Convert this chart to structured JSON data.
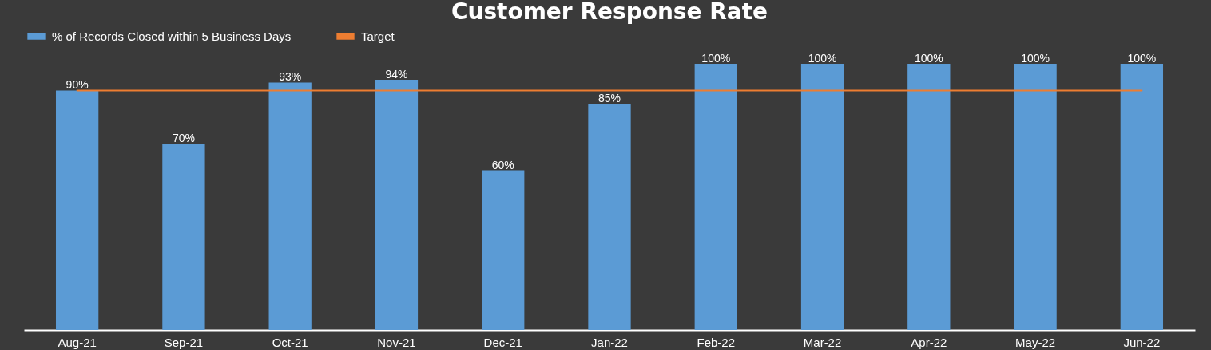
{
  "chart_data": {
    "type": "bar",
    "title": "Customer Response Rate",
    "legend": "top",
    "categories": [
      "Aug-21",
      "Sep-21",
      "Oct-21",
      "Nov-21",
      "Dec-21",
      "Jan-22",
      "Feb-22",
      "Mar-22",
      "Apr-22",
      "May-22",
      "Jun-22"
    ],
    "series": [
      {
        "name": "% of Records Closed within 5 Business Days",
        "color": "#5b9bd5",
        "values": [
          90,
          70,
          93,
          94,
          60,
          85,
          100,
          100,
          100,
          100,
          100
        ],
        "value_labels": [
          "90%",
          "70%",
          "93%",
          "94%",
          "60%",
          "85%",
          "100%",
          "100%",
          "100%",
          "100%",
          "100%"
        ]
      },
      {
        "name": "Target",
        "type": "line",
        "color": "#ed7d31",
        "values": [
          90,
          90,
          90,
          90,
          90,
          90,
          90,
          90,
          90,
          90,
          90
        ]
      }
    ]
  }
}
